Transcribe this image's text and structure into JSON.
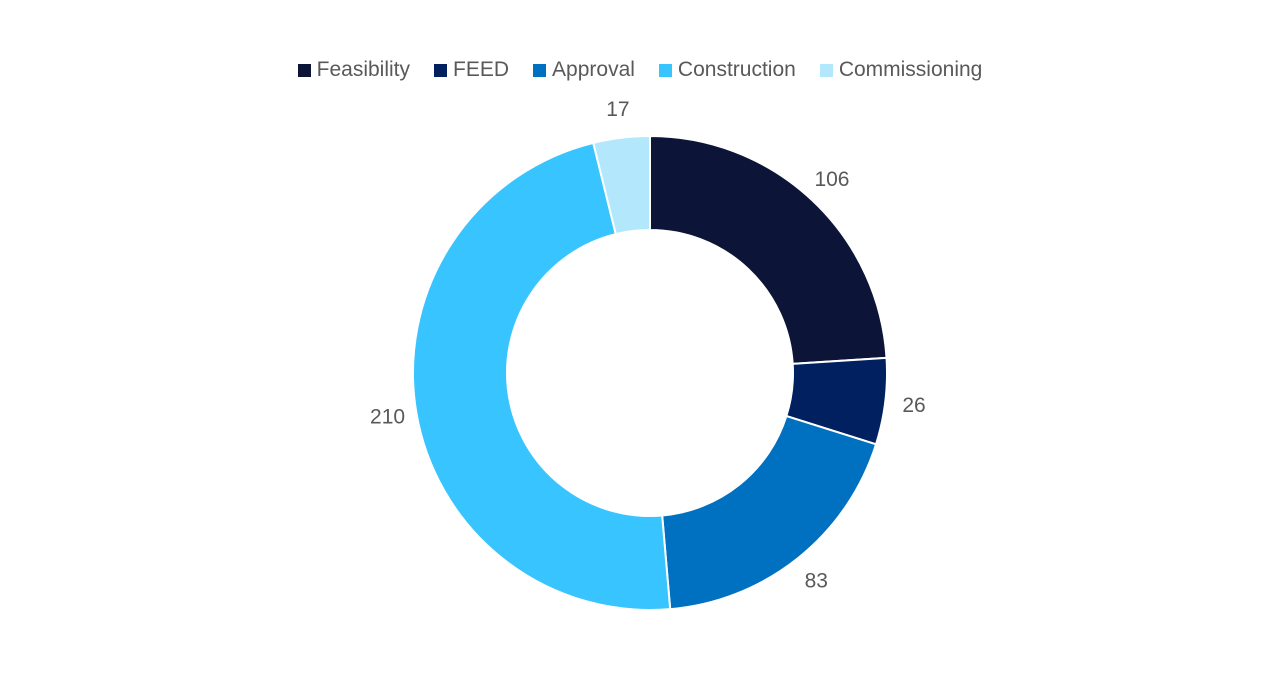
{
  "chart_data": {
    "type": "pie",
    "variant": "donut",
    "categories": [
      "Feasibility",
      "FEED",
      "Approval",
      "Construction",
      "Commissioning"
    ],
    "values": [
      106,
      26,
      83,
      210,
      17
    ],
    "colors": [
      "#0c1538",
      "#002060",
      "#0070c0",
      "#38c4ff",
      "#b3e8fc"
    ],
    "legend": "top",
    "data_labels": true
  }
}
